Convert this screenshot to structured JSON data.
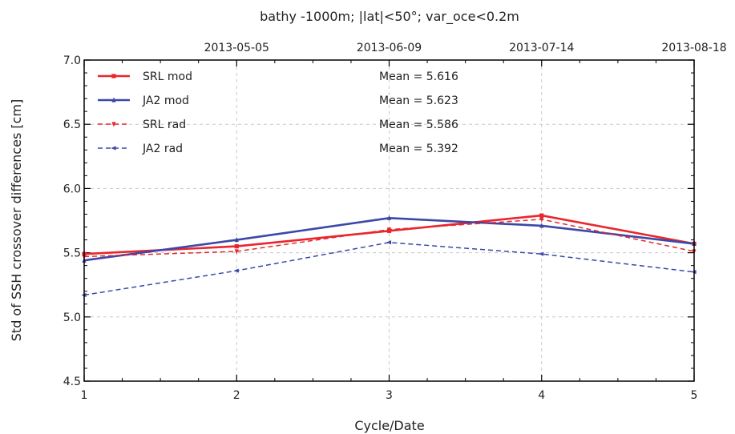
{
  "chart_data": {
    "type": "line",
    "title": "bathy -1000m; |lat|<50°; var_oce<0.2m",
    "xlabel": "Cycle/Date",
    "ylabel": "Std of SSH crossover differences [cm]",
    "x": [
      1,
      2,
      3,
      4,
      5
    ],
    "x_ticks": [
      "1",
      "2",
      "3",
      "4",
      "5"
    ],
    "top_ticks": [
      {
        "x": 2,
        "label": "2013-05-05"
      },
      {
        "x": 3,
        "label": "2013-06-09"
      },
      {
        "x": 4,
        "label": "2013-07-14"
      },
      {
        "x": 5,
        "label": "2013-08-18"
      }
    ],
    "xlim": [
      1,
      5
    ],
    "ylim": [
      4.5,
      7.0
    ],
    "y_ticks": [
      "4.5",
      "5.0",
      "5.5",
      "6.0",
      "6.5",
      "7.0"
    ],
    "grid": true,
    "legend_position": "top-left",
    "series": [
      {
        "name": "SRL mod",
        "values": [
          5.49,
          5.55,
          5.67,
          5.79,
          5.57
        ],
        "color": "#e8262c",
        "dashed": false,
        "marker": "square",
        "mean_label": "Mean = 5.616"
      },
      {
        "name": "JA2 mod",
        "values": [
          5.44,
          5.6,
          5.77,
          5.71,
          5.57
        ],
        "color": "#3b48a8",
        "dashed": false,
        "marker": "triangle-up",
        "mean_label": "Mean = 5.623"
      },
      {
        "name": "SRL rad",
        "values": [
          5.47,
          5.51,
          5.68,
          5.76,
          5.51
        ],
        "color": "#e8262c",
        "dashed": true,
        "marker": "triangle-down",
        "mean_label": "Mean = 5.586"
      },
      {
        "name": "JA2 rad",
        "values": [
          5.17,
          5.36,
          5.58,
          5.49,
          5.35
        ],
        "color": "#3b48a8",
        "dashed": true,
        "marker": "triangle-left",
        "mean_label": "Mean = 5.392"
      }
    ]
  }
}
